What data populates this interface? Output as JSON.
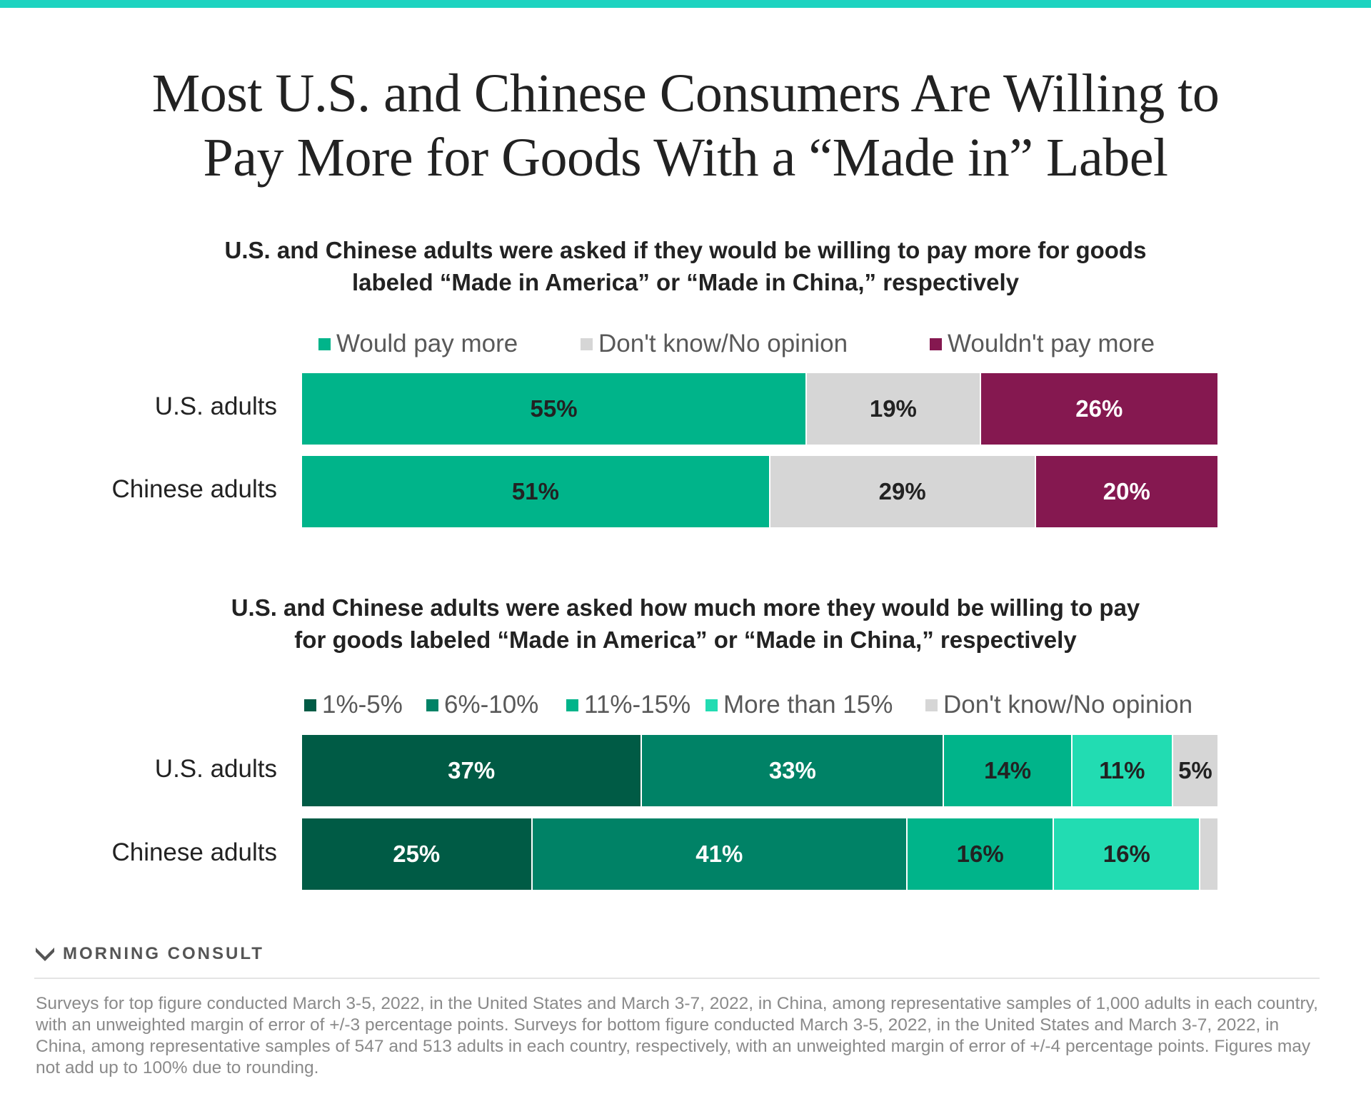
{
  "title": {
    "line1": "Most U.S. and Chinese Consumers Are Willing to",
    "line2": "Pay More for Goods With a “Made in” Label"
  },
  "brand": "MORNING CONSULT",
  "footnote": "Surveys for top figure conducted March 3-5, 2022, in the United States and March 3-7, 2022, in China, among representative samples of 1,000 adults in each country, with an unweighted margin of error of +/-3 percentage points. Surveys for bottom figure conducted March 3-5, 2022, in the United States and March 3-7, 2022, in China, among representative samples of 547 and 513 adults in each country, respectively, with an unweighted margin of error of +/-4 percentage points. Figures may not add up to 100% due to rounding.",
  "chart_data": [
    {
      "type": "bar",
      "orientation": "horizontal",
      "stacked": true,
      "title": {
        "line1": "U.S. and Chinese adults were asked if they would be willing to pay more for goods",
        "line2": "labeled “Made in America” or “Made in China,” respectively"
      },
      "legend_position": "top",
      "categories": [
        "U.S. adults",
        "Chinese adults"
      ],
      "series": [
        {
          "name": "Would pay more",
          "color": "#00b48a",
          "text_color": "#222222",
          "values": [
            55,
            51
          ],
          "labels": [
            "55%",
            "51%"
          ]
        },
        {
          "name": "Don't know/No opinion",
          "color": "#d6d6d6",
          "text_color": "#222222",
          "values": [
            19,
            29
          ],
          "labels": [
            "19%",
            "29%"
          ]
        },
        {
          "name": "Wouldn't pay more",
          "color": "#851850",
          "text_color": "#ffffff",
          "values": [
            26,
            20
          ],
          "labels": [
            "26%",
            "20%"
          ]
        }
      ]
    },
    {
      "type": "bar",
      "orientation": "horizontal",
      "stacked": true,
      "title": {
        "line1": "U.S. and Chinese adults were asked how much more they would be willing to pay",
        "line2": "for goods labeled “Made in America” or “Made in China,” respectively"
      },
      "legend_position": "top",
      "categories": [
        "U.S. adults",
        "Chinese adults"
      ],
      "series": [
        {
          "name": "1%-5%",
          "color": "#005b45",
          "text_color": "#ffffff",
          "values": [
            37,
            25
          ],
          "labels": [
            "37%",
            "25%"
          ]
        },
        {
          "name": "6%-10%",
          "color": "#008266",
          "text_color": "#ffffff",
          "values": [
            33,
            41
          ],
          "labels": [
            "33%",
            "41%"
          ]
        },
        {
          "name": "11%-15%",
          "color": "#00b48a",
          "text_color": "#222222",
          "values": [
            14,
            16
          ],
          "labels": [
            "14%",
            "16%"
          ]
        },
        {
          "name": "More than 15%",
          "color": "#22dcb2",
          "text_color": "#222222",
          "values": [
            11,
            16
          ],
          "labels": [
            "11%",
            "16%"
          ]
        },
        {
          "name": "Don't know/No opinion",
          "color": "#d6d6d6",
          "text_color": "#222222",
          "values": [
            5,
            2
          ],
          "labels": [
            "5%",
            ""
          ]
        }
      ]
    }
  ]
}
